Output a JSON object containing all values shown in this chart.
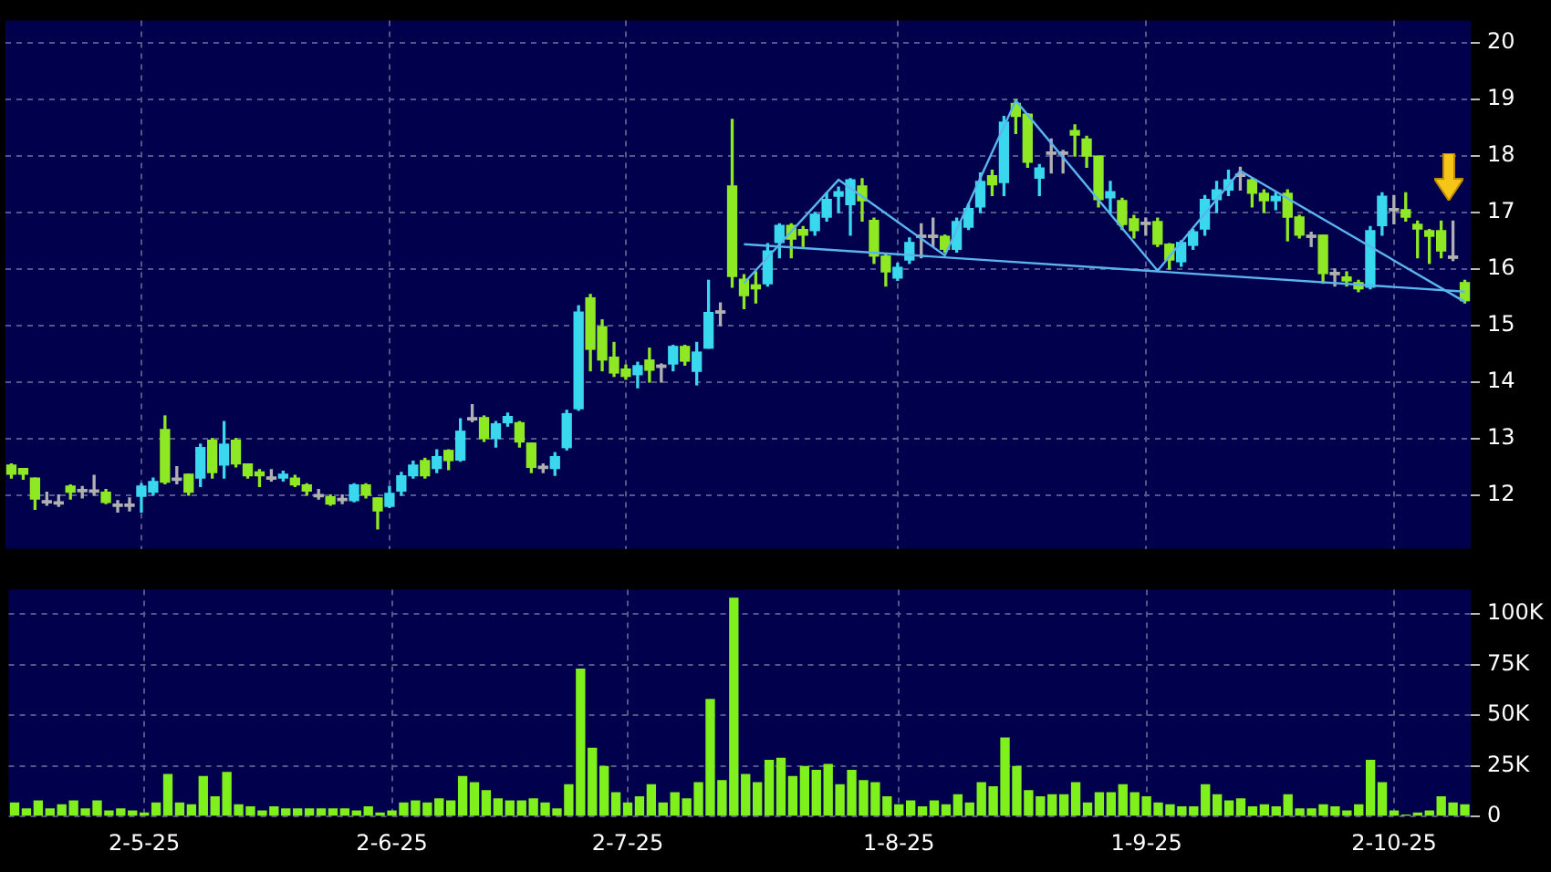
{
  "chart_data": [
    {
      "type": "candlestick",
      "categories": [
        null,
        null,
        null,
        null,
        null,
        null,
        null,
        null,
        null,
        null,
        null,
        null,
        null,
        null,
        null,
        null,
        null,
        null,
        null,
        null,
        null,
        null,
        null,
        null,
        null,
        null,
        null,
        null,
        null,
        null,
        null,
        null,
        null,
        null,
        null,
        null,
        null,
        null,
        null,
        null,
        null,
        null,
        null,
        null,
        null,
        null,
        null,
        null,
        null,
        null,
        null,
        null,
        null,
        null,
        null,
        null,
        null,
        null,
        null,
        null,
        null,
        null,
        null,
        null,
        null,
        null,
        null,
        null,
        null,
        null,
        null,
        null,
        null,
        null,
        null,
        null,
        null,
        null,
        null,
        null,
        null,
        null,
        null,
        null,
        null,
        null,
        null,
        null,
        null,
        null,
        null,
        null,
        null,
        null,
        null,
        null,
        null,
        null,
        null,
        null,
        null,
        null,
        null,
        null,
        null,
        null,
        null,
        null,
        null,
        null,
        null,
        null,
        null,
        null,
        null,
        null,
        null,
        null,
        null,
        null,
        null,
        null,
        null,
        null
      ],
      "ohlc": [
        [
          12.53,
          12.55,
          12.3,
          12.37
        ],
        [
          12.47,
          12.47,
          12.28,
          12.37
        ],
        [
          12.3,
          12.3,
          11.75,
          11.93
        ],
        [
          11.9,
          12.05,
          11.82,
          11.86
        ],
        [
          11.88,
          12.0,
          11.8,
          11.84
        ],
        [
          12.16,
          12.18,
          11.93,
          12.05
        ],
        [
          12.1,
          12.15,
          11.95,
          12.06
        ],
        [
          12.09,
          12.35,
          12.0,
          12.05
        ],
        [
          12.05,
          12.1,
          11.85,
          11.87
        ],
        [
          11.84,
          11.9,
          11.7,
          11.8
        ],
        [
          11.84,
          11.95,
          11.72,
          11.8
        ],
        [
          11.98,
          12.2,
          11.7,
          12.16
        ],
        [
          12.05,
          12.3,
          12.0,
          12.24
        ],
        [
          13.16,
          13.4,
          12.2,
          12.23
        ],
        [
          12.3,
          12.5,
          12.2,
          12.26
        ],
        [
          12.37,
          12.37,
          12.0,
          12.05
        ],
        [
          12.3,
          12.9,
          12.15,
          12.84
        ],
        [
          12.97,
          13.0,
          12.3,
          12.4
        ],
        [
          12.53,
          13.3,
          12.3,
          12.9
        ],
        [
          12.97,
          13.0,
          12.5,
          12.55
        ],
        [
          12.55,
          12.55,
          12.3,
          12.34
        ],
        [
          12.41,
          12.45,
          12.15,
          12.34
        ],
        [
          12.32,
          12.45,
          12.25,
          12.28
        ],
        [
          12.3,
          12.42,
          12.25,
          12.37
        ],
        [
          12.3,
          12.35,
          12.15,
          12.18
        ],
        [
          12.18,
          12.2,
          12.0,
          12.07
        ],
        [
          12.01,
          12.1,
          11.93,
          11.97
        ],
        [
          11.97,
          12.0,
          11.82,
          11.84
        ],
        [
          11.94,
          12.0,
          11.85,
          11.9
        ],
        [
          11.9,
          12.2,
          11.88,
          12.18
        ],
        [
          12.18,
          12.2,
          11.95,
          12.0
        ],
        [
          11.95,
          11.95,
          11.4,
          11.72
        ],
        [
          11.8,
          12.15,
          11.78,
          12.03
        ],
        [
          12.07,
          12.4,
          12.0,
          12.34
        ],
        [
          12.34,
          12.6,
          12.3,
          12.53
        ],
        [
          12.61,
          12.65,
          12.3,
          12.34
        ],
        [
          12.47,
          12.8,
          12.4,
          12.68
        ],
        [
          12.79,
          12.8,
          12.45,
          12.61
        ],
        [
          12.62,
          13.35,
          12.6,
          13.13
        ],
        [
          13.37,
          13.6,
          13.3,
          13.33
        ],
        [
          13.37,
          13.4,
          12.95,
          13.0
        ],
        [
          13.0,
          13.3,
          12.85,
          13.26
        ],
        [
          13.28,
          13.45,
          13.22,
          13.39
        ],
        [
          13.28,
          13.3,
          12.85,
          12.94
        ],
        [
          12.92,
          12.92,
          12.4,
          12.49
        ],
        [
          12.51,
          12.55,
          12.4,
          12.47
        ],
        [
          12.47,
          12.75,
          12.35,
          12.68
        ],
        [
          12.84,
          13.5,
          12.8,
          13.44
        ],
        [
          13.53,
          15.35,
          13.5,
          15.24
        ],
        [
          15.49,
          15.55,
          14.2,
          14.58
        ],
        [
          14.98,
          15.1,
          14.2,
          14.39
        ],
        [
          14.44,
          14.7,
          14.1,
          14.16
        ],
        [
          14.23,
          14.3,
          14.05,
          14.1
        ],
        [
          14.13,
          14.35,
          13.9,
          14.29
        ],
        [
          14.39,
          14.6,
          14.0,
          14.21
        ],
        [
          14.3,
          14.32,
          14.0,
          14.26
        ],
        [
          14.32,
          14.65,
          14.2,
          14.63
        ],
        [
          14.63,
          14.65,
          14.3,
          14.37
        ],
        [
          14.19,
          14.7,
          13.95,
          14.53
        ],
        [
          14.6,
          15.8,
          14.6,
          15.23
        ],
        [
          15.26,
          15.4,
          15.0,
          15.22
        ],
        [
          17.47,
          18.65,
          15.68,
          15.87
        ],
        [
          15.82,
          15.9,
          15.3,
          15.53
        ],
        [
          15.72,
          15.95,
          15.4,
          15.65
        ],
        [
          15.74,
          16.45,
          15.7,
          16.32
        ],
        [
          16.47,
          16.8,
          16.2,
          16.77
        ],
        [
          16.77,
          16.8,
          16.2,
          16.53
        ],
        [
          16.7,
          16.75,
          16.4,
          16.6
        ],
        [
          16.68,
          17.0,
          16.6,
          16.97
        ],
        [
          16.92,
          17.35,
          16.85,
          17.23
        ],
        [
          17.29,
          17.45,
          17.0,
          17.37
        ],
        [
          17.14,
          17.6,
          16.6,
          17.58
        ],
        [
          17.47,
          17.6,
          16.85,
          17.21
        ],
        [
          16.86,
          16.9,
          16.1,
          16.23
        ],
        [
          16.23,
          16.25,
          15.7,
          15.95
        ],
        [
          15.84,
          16.1,
          15.8,
          16.03
        ],
        [
          16.16,
          16.55,
          16.1,
          16.47
        ],
        [
          16.6,
          16.8,
          16.2,
          16.56
        ],
        [
          16.6,
          16.9,
          16.4,
          16.56
        ],
        [
          16.58,
          16.6,
          16.3,
          16.35
        ],
        [
          16.35,
          16.9,
          16.3,
          16.84
        ],
        [
          16.74,
          17.15,
          16.7,
          17.07
        ],
        [
          17.1,
          17.7,
          17.0,
          17.55
        ],
        [
          17.65,
          17.75,
          17.3,
          17.49
        ],
        [
          17.53,
          18.7,
          17.3,
          18.6
        ],
        [
          18.93,
          19.0,
          18.4,
          18.7
        ],
        [
          18.74,
          18.75,
          17.8,
          17.89
        ],
        [
          17.61,
          17.85,
          17.3,
          17.79
        ],
        [
          18.07,
          18.3,
          17.7,
          18.03
        ],
        [
          18.07,
          18.1,
          17.7,
          18.03
        ],
        [
          18.45,
          18.55,
          18.0,
          18.37
        ],
        [
          18.3,
          18.35,
          17.8,
          18.0
        ],
        [
          18.0,
          18.0,
          17.1,
          17.23
        ],
        [
          17.26,
          17.55,
          17.0,
          17.37
        ],
        [
          17.21,
          17.25,
          16.7,
          16.79
        ],
        [
          16.89,
          16.95,
          16.55,
          16.68
        ],
        [
          16.83,
          16.9,
          16.6,
          16.79
        ],
        [
          16.84,
          16.9,
          16.4,
          16.44
        ],
        [
          16.44,
          16.45,
          16.0,
          16.16
        ],
        [
          16.13,
          16.5,
          16.05,
          16.47
        ],
        [
          16.42,
          16.7,
          16.35,
          16.66
        ],
        [
          16.71,
          17.3,
          16.6,
          17.23
        ],
        [
          17.23,
          17.55,
          17.0,
          17.4
        ],
        [
          17.4,
          17.75,
          17.3,
          17.58
        ],
        [
          17.68,
          17.8,
          17.4,
          17.64
        ],
        [
          17.58,
          17.6,
          17.1,
          17.34
        ],
        [
          17.34,
          17.4,
          17.0,
          17.21
        ],
        [
          17.21,
          17.35,
          17.05,
          17.29
        ],
        [
          17.34,
          17.4,
          16.5,
          16.92
        ],
        [
          16.92,
          16.95,
          16.55,
          16.6
        ],
        [
          16.6,
          16.65,
          16.4,
          16.56
        ],
        [
          16.6,
          16.6,
          15.75,
          15.92
        ],
        [
          15.94,
          16.0,
          15.7,
          15.9
        ],
        [
          15.86,
          15.95,
          15.7,
          15.79
        ],
        [
          15.76,
          15.8,
          15.6,
          15.65
        ],
        [
          15.68,
          16.75,
          15.65,
          16.68
        ],
        [
          16.77,
          17.35,
          16.6,
          17.29
        ],
        [
          17.07,
          17.3,
          16.8,
          17.03
        ],
        [
          17.05,
          17.35,
          16.85,
          16.92
        ],
        [
          16.79,
          16.85,
          16.2,
          16.71
        ],
        [
          16.68,
          16.7,
          16.1,
          16.58
        ],
        [
          16.68,
          16.85,
          16.2,
          16.32
        ],
        [
          16.23,
          16.85,
          16.15,
          16.19
        ],
        [
          15.76,
          15.8,
          15.4,
          15.44
        ]
      ],
      "colors": [
        "#8ee824",
        "#8ee824",
        "#8ee824",
        "#b0b0b0",
        "#b0b0b0",
        "#8ee824",
        "#b0b0b0",
        "#b0b0b0",
        "#8ee824",
        "#b0b0b0",
        "#b0b0b0",
        "#3ad8ee",
        "#3ad8ee",
        "#8ee824",
        "#b0b0b0",
        "#8ee824",
        "#3ad8ee",
        "#8ee824",
        "#3ad8ee",
        "#8ee824",
        "#8ee824",
        "#8ee824",
        "#b0b0b0",
        "#3ad8ee",
        "#8ee824",
        "#8ee824",
        "#b0b0b0",
        "#8ee824",
        "#b0b0b0",
        "#3ad8ee",
        "#8ee824",
        "#8ee824",
        "#3ad8ee",
        "#3ad8ee",
        "#3ad8ee",
        "#8ee824",
        "#3ad8ee",
        "#8ee824",
        "#3ad8ee",
        "#b0b0b0",
        "#8ee824",
        "#3ad8ee",
        "#3ad8ee",
        "#8ee824",
        "#8ee824",
        "#b0b0b0",
        "#3ad8ee",
        "#3ad8ee",
        "#3ad8ee",
        "#8ee824",
        "#8ee824",
        "#8ee824",
        "#8ee824",
        "#3ad8ee",
        "#8ee824",
        "#b0b0b0",
        "#3ad8ee",
        "#8ee824",
        "#3ad8ee",
        "#3ad8ee",
        "#b0b0b0",
        "#8ee824",
        "#8ee824",
        "#8ee824",
        "#3ad8ee",
        "#3ad8ee",
        "#8ee824",
        "#8ee824",
        "#3ad8ee",
        "#3ad8ee",
        "#3ad8ee",
        "#3ad8ee",
        "#8ee824",
        "#8ee824",
        "#8ee824",
        "#3ad8ee",
        "#3ad8ee",
        "#b0b0b0",
        "#b0b0b0",
        "#8ee824",
        "#3ad8ee",
        "#3ad8ee",
        "#3ad8ee",
        "#8ee824",
        "#3ad8ee",
        "#8ee824",
        "#8ee824",
        "#3ad8ee",
        "#b0b0b0",
        "#b0b0b0",
        "#8ee824",
        "#8ee824",
        "#8ee824",
        "#3ad8ee",
        "#8ee824",
        "#8ee824",
        "#b0b0b0",
        "#8ee824",
        "#8ee824",
        "#3ad8ee",
        "#3ad8ee",
        "#3ad8ee",
        "#3ad8ee",
        "#3ad8ee",
        "#b0b0b0",
        "#8ee824",
        "#8ee824",
        "#3ad8ee",
        "#8ee824",
        "#8ee824",
        "#b0b0b0",
        "#8ee824",
        "#b0b0b0",
        "#8ee824",
        "#8ee824",
        "#3ad8ee",
        "#3ad8ee",
        "#b0b0b0",
        "#8ee824",
        "#8ee824",
        "#8ee824",
        "#8ee824",
        "#b0b0b0",
        "#8ee824"
      ],
      "series": [
        {
          "type": "line",
          "color": "#5ab4ee",
          "values": [
            null,
            null,
            null,
            null,
            null,
            null,
            null,
            null,
            null,
            null,
            null,
            null,
            null,
            null,
            null,
            null,
            null,
            null,
            null,
            null,
            null,
            null,
            null,
            null,
            null,
            null,
            null,
            null,
            null,
            null,
            null,
            null,
            null,
            null,
            null,
            null,
            null,
            null,
            null,
            null,
            null,
            null,
            null,
            null,
            null,
            null,
            null,
            null,
            null,
            null,
            null,
            null,
            null,
            null,
            null,
            null,
            null,
            null,
            null,
            null,
            null,
            null,
            16.44,
            null,
            null,
            null,
            null,
            null,
            null,
            null,
            null,
            null,
            null,
            null,
            null,
            null,
            null,
            null,
            null,
            null,
            null,
            null,
            null,
            null,
            null,
            null,
            null,
            null,
            null,
            null,
            null,
            null,
            null,
            null,
            null,
            null,
            null,
            null,
            null,
            null,
            null,
            null,
            null,
            null,
            null,
            null,
            null,
            null,
            null,
            null,
            null,
            null,
            null,
            null,
            null,
            null,
            null,
            null,
            null,
            null,
            null,
            null,
            null,
            15.6
          ]
        },
        {
          "type": "line",
          "color": "#5ab4ee",
          "values": [
            null,
            null,
            null,
            null,
            null,
            null,
            null,
            null,
            null,
            null,
            null,
            null,
            null,
            null,
            null,
            null,
            null,
            null,
            null,
            null,
            null,
            null,
            null,
            null,
            null,
            null,
            null,
            null,
            null,
            null,
            null,
            null,
            null,
            null,
            null,
            null,
            null,
            null,
            null,
            null,
            null,
            null,
            null,
            null,
            null,
            null,
            null,
            null,
            null,
            null,
            null,
            null,
            null,
            null,
            null,
            null,
            null,
            null,
            null,
            null,
            null,
            null,
            15.75,
            null,
            null,
            null,
            null,
            null,
            null,
            null,
            17.58,
            null,
            null,
            null,
            null,
            null,
            null,
            null,
            null,
            16.24,
            null,
            null,
            null,
            null,
            null,
            18.98,
            null,
            null,
            null,
            null,
            null,
            null,
            null,
            null,
            null,
            null,
            null,
            15.97,
            null,
            null,
            null,
            null,
            null,
            null,
            17.74,
            null,
            null,
            null,
            null,
            null,
            null,
            null,
            null,
            null,
            null,
            null,
            null,
            null,
            null,
            null,
            null,
            null,
            null,
            15.42
          ]
        }
      ],
      "ylim": [
        11.05,
        20.4
      ],
      "yticks": [
        12,
        13,
        14,
        15,
        16,
        17,
        18,
        19,
        20
      ],
      "grid": true,
      "tick_labels": "y"
    },
    {
      "type": "bar",
      "categories": [
        null,
        null,
        null,
        null,
        null,
        null,
        null,
        null,
        null,
        null,
        null,
        "2-5-25",
        null,
        null,
        null,
        null,
        null,
        null,
        null,
        null,
        null,
        null,
        null,
        null,
        null,
        null,
        null,
        null,
        null,
        null,
        null,
        null,
        "2-6-25",
        null,
        null,
        null,
        null,
        null,
        null,
        null,
        null,
        null,
        null,
        null,
        null,
        null,
        null,
        null,
        null,
        null,
        null,
        null,
        "2-7-25",
        null,
        null,
        null,
        null,
        null,
        null,
        null,
        null,
        null,
        null,
        null,
        null,
        null,
        null,
        null,
        null,
        null,
        null,
        null,
        null,
        null,
        null,
        "1-8-25",
        null,
        null,
        null,
        null,
        null,
        null,
        null,
        null,
        null,
        null,
        null,
        null,
        null,
        null,
        null,
        null,
        null,
        null,
        null,
        null,
        "1-9-25",
        null,
        null,
        null,
        null,
        null,
        null,
        null,
        null,
        null,
        null,
        null,
        null,
        null,
        null,
        null,
        null,
        null,
        null,
        null,
        null,
        "2-10-25",
        null,
        null,
        null,
        null,
        null,
        null
      ],
      "values": [
        7000,
        4000,
        8000,
        4000,
        6000,
        8000,
        4000,
        8000,
        3000,
        4000,
        3000,
        2000,
        7000,
        21000,
        7000,
        6000,
        20000,
        10000,
        22000,
        6000,
        5000,
        3000,
        5000,
        4000,
        4000,
        4000,
        4000,
        4000,
        4000,
        3000,
        5000,
        2000,
        3000,
        7000,
        8000,
        7000,
        9000,
        8000,
        20000,
        17000,
        13000,
        9000,
        8000,
        8000,
        9000,
        7000,
        4000,
        16000,
        73000,
        34000,
        25000,
        12000,
        7000,
        10000,
        16000,
        7000,
        12000,
        9000,
        17000,
        58000,
        18000,
        108000,
        21000,
        17000,
        28000,
        29000,
        20000,
        25000,
        23000,
        26000,
        16000,
        23000,
        18000,
        17000,
        10000,
        6000,
        8000,
        5000,
        8000,
        6000,
        11000,
        7000,
        17000,
        15000,
        39000,
        25000,
        13000,
        10000,
        11000,
        11000,
        17000,
        7000,
        12000,
        12000,
        16000,
        12000,
        10000,
        7000,
        6000,
        5000,
        5000,
        16000,
        11000,
        8000,
        9000,
        5000,
        6000,
        5000,
        11000,
        4000,
        4000,
        6000,
        5000,
        3000,
        6000,
        28000,
        17000,
        3000,
        1000,
        2000,
        3000,
        10000,
        7000,
        6000
      ],
      "color": "#7ff01c",
      "ylim": [
        0,
        112000
      ],
      "yticks": [
        0,
        {
          "value": 25000,
          "label": "25K"
        },
        {
          "value": 50000,
          "label": "50K"
        },
        {
          "value": 75000,
          "label": "75K"
        },
        {
          "value": 100000,
          "label": "100K"
        }
      ],
      "grid": true
    }
  ]
}
